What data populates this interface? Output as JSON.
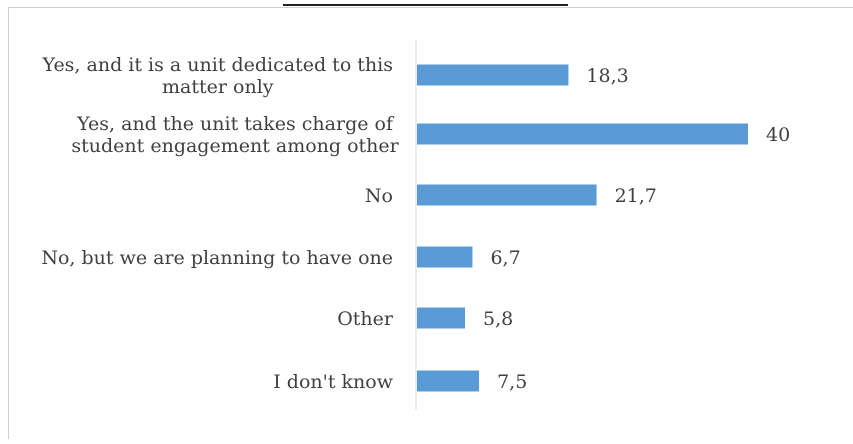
{
  "chart_data": {
    "type": "bar",
    "orientation": "horizontal",
    "categories": [
      "Yes, and it is a unit dedicated to this matter only",
      "Yes, and the unit takes charge of student engagement among other",
      "No",
      "No, but we are planning to have one",
      "Other",
      "I don't know"
    ],
    "values": [
      18.3,
      40,
      21.7,
      6.7,
      5.8,
      7.5
    ],
    "value_labels": [
      "18,3",
      "40",
      "21,7",
      "6,7",
      "5,8",
      "7,5"
    ],
    "category_label_lines": [
      [
        "Yes, and it is a unit dedicated to this",
        "matter only"
      ],
      [
        "Yes, and the unit takes charge of",
        "student engagement among other"
      ],
      [
        "No"
      ],
      [
        "No, but we are planning to have one"
      ],
      [
        "Other"
      ],
      [
        "I don't know"
      ]
    ],
    "bar_color": "#5b9bd5",
    "xlim": [
      0,
      40
    ],
    "grid": false,
    "legend": "none"
  }
}
